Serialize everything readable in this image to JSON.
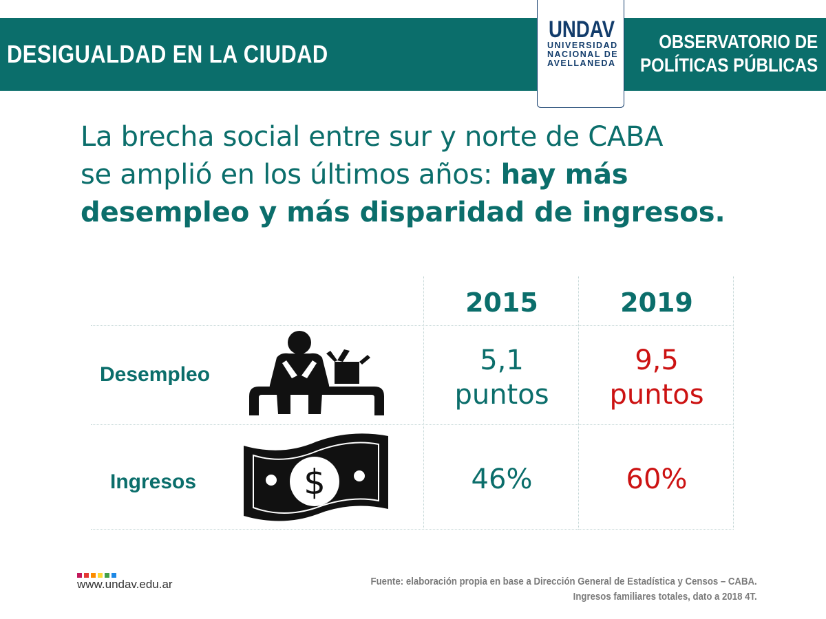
{
  "header": {
    "title": "DESIGUALDAD EN LA CIUDAD",
    "observatory_line1": "OBSERVATORIO DE",
    "observatory_line2": "POLÍTICAS PÚBLICAS"
  },
  "logo": {
    "mark": "UNDAV",
    "line1": "UNIVERSIDAD",
    "line2": "NACIONAL DE",
    "line3": "AVELLANEDA"
  },
  "headline": {
    "line1": "La brecha social entre sur y norte de CABA",
    "line2_normal": "se amplió en los últimos años: ",
    "line2_bold": "hay más",
    "line3_bold": "desempleo y más disparidad de ingresos."
  },
  "table": {
    "columns": [
      "2015",
      "2019"
    ],
    "rows": [
      {
        "label": "Desempleo",
        "icon": "unemployed-person-icon",
        "v2015_line1": "5,1",
        "v2015_line2": "puntos",
        "v2019_line1": "9,5",
        "v2019_line2": "puntos"
      },
      {
        "label": "Ingresos",
        "icon": "banknote-icon",
        "v2015": "46%",
        "v2019": "60%"
      }
    ]
  },
  "colors": {
    "brand_teal": "#0b6e6b",
    "highlight_red": "#cc1212",
    "logo_navy": "#123c6b"
  },
  "footer": {
    "url": "www.undav.edu.ar",
    "source_line1": "Fuente: elaboración propia en base a Dirección General de Estadística y Censos – CABA.",
    "source_line2": "Ingresos familiares totales, dato a 2018 4T.",
    "dot_colors": [
      "#c2185b",
      "#e53935",
      "#fb8c00",
      "#fdd835",
      "#43a047",
      "#1e88e5"
    ]
  }
}
